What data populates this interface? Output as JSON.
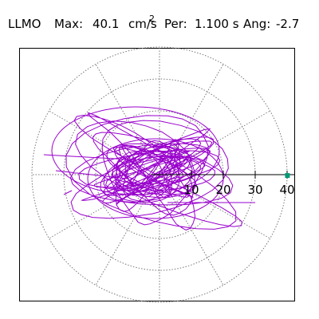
{
  "header": {
    "station": "LLMO",
    "max_label": "Max:",
    "max_value": "40.1",
    "max_unit": "cm/s",
    "max_unit_exponent": "2",
    "period_label": "Per:",
    "period_value": "1.100 s",
    "angle_label": "Ang:",
    "angle_value": "-2.7"
  },
  "chart_data": {
    "type": "scatter",
    "title": "",
    "xlabel": "",
    "ylabel": "",
    "radial_ticks": [
      "10",
      "20",
      "30",
      "40"
    ],
    "radial_max": 40,
    "ring_values": [
      10,
      20,
      30,
      40
    ],
    "peak_point": {
      "x": 40.1,
      "y": -2.7
    },
    "peak_angle_deg": -2.7,
    "grid": true,
    "colors": {
      "trace": "#9900cc",
      "grid": "#777777",
      "axis": "#000000",
      "marker": "#009977"
    }
  }
}
